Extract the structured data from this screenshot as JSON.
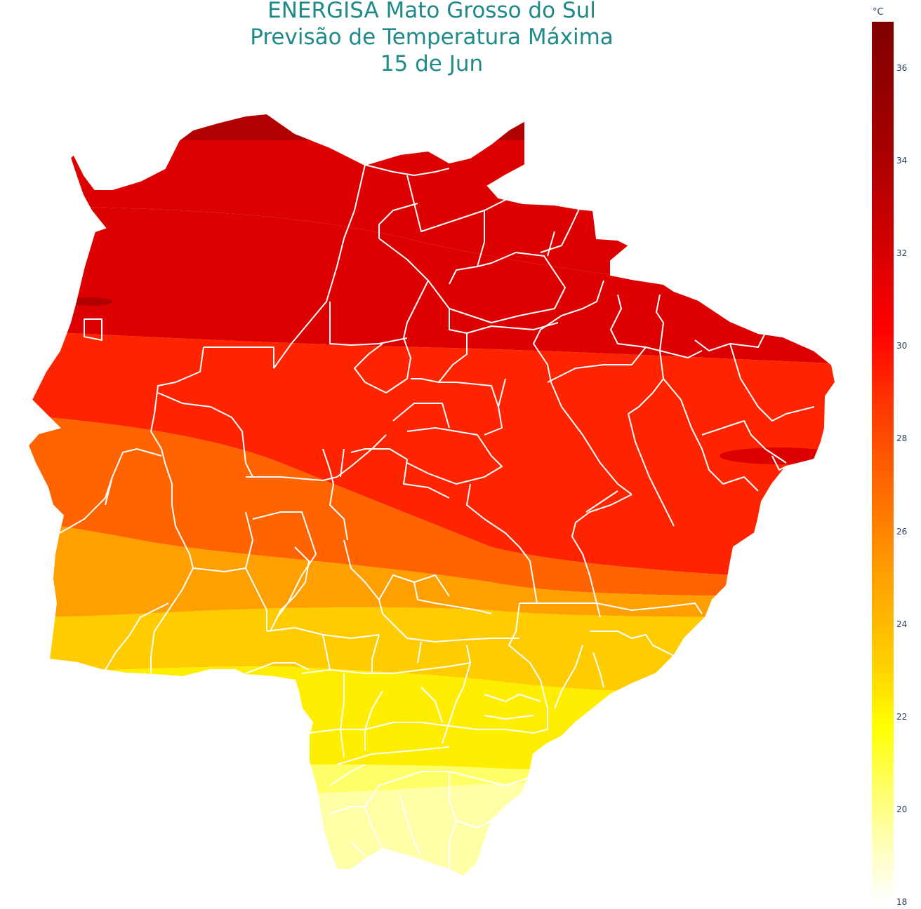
{
  "title": {
    "line1": "ENERGISA Mato Grosso do Sul",
    "line2": "Previsão de Temperatura Máxima",
    "line3": "15 de Jun"
  },
  "colorbar": {
    "unit": "°C",
    "ticks": [
      "36",
      "34",
      "32",
      "30",
      "28",
      "26",
      "24",
      "22",
      "20",
      "18"
    ],
    "min": 18,
    "max": 37
  },
  "map": {
    "region": "Mato Grosso do Sul",
    "variable": "Temperatura Máxima",
    "colors": {
      "band_36": "#b00000",
      "band_34": "#dc0000",
      "band_32": "#ff2400",
      "band_30": "#ff6400",
      "band_27": "#ffa000",
      "band_25": "#ffcc00",
      "band_23": "#ffee00",
      "band_21": "#ffff66",
      "band_19": "#ffffa8",
      "boundary": "#ffffff"
    }
  }
}
